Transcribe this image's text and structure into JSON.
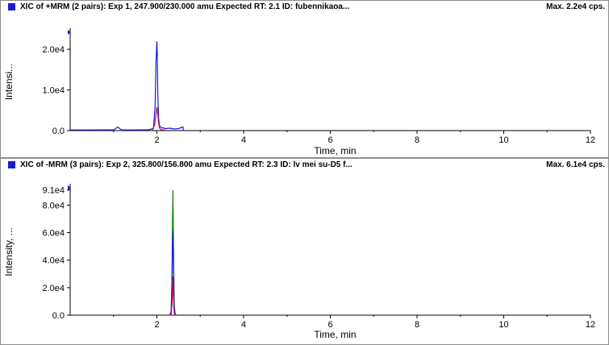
{
  "panes": [
    {
      "title": "XIC of +MRM (2 pairs): Exp 1, 247.900/230.000 amu Expected RT: 2.1 ID: fubennikaoa...",
      "max_label": "Max. 2.2e4 cps.",
      "marker_color": "#1a1ad9",
      "x_axis_label": "Time, min",
      "y_axis_label": "Intensi...",
      "chart_data": {
        "type": "line",
        "xlabel": "Time, min",
        "ylabel": "Intensi...",
        "xlim": [
          0,
          12
        ],
        "ylim": [
          0,
          24000
        ],
        "x_ticks": [
          "2",
          "4",
          "6",
          "8",
          "10",
          "12"
        ],
        "y_ticks": [
          {
            "value": 0,
            "label": "0.0"
          },
          {
            "value": 10000,
            "label": "1.0e4"
          },
          {
            "value": 20000,
            "label": "2.0e4"
          }
        ],
        "series": [
          {
            "color": "#1a1ad9",
            "x": [
              0.0,
              0.5,
              1.0,
              1.05,
              1.1,
              1.15,
              1.2,
              1.4,
              1.8,
              1.92,
              1.96,
              1.98,
              2.0,
              2.01,
              2.02,
              2.04,
              2.06,
              2.08,
              2.12,
              2.2,
              2.3,
              2.4,
              2.5,
              2.6,
              2.61
            ],
            "y": [
              150,
              150,
              200,
              500,
              900,
              400,
              150,
              150,
              200,
              500,
              6000,
              17000,
              22000,
              19000,
              9000,
              3000,
              1200,
              900,
              700,
              500,
              600,
              400,
              500,
              900,
              0
            ]
          },
          {
            "color": "#c0104a",
            "x": [
              1.9,
              1.95,
              1.98,
              2.0,
              2.02,
              2.04,
              2.06,
              2.1,
              2.2
            ],
            "y": [
              100,
              1500,
              4000,
              5800,
              4000,
              1800,
              600,
              200,
              100
            ]
          }
        ]
      }
    },
    {
      "title": "XIC of -MRM (3 pairs): Exp 2, 325.800/156.800 amu Expected RT: 2.3 ID: lv mei su-D5 f...",
      "max_label": "Max. 6.1e4 cps.",
      "marker_color": "#1a1ad9",
      "x_axis_label": "Time, min",
      "y_axis_label": "Intensity, ...",
      "chart_data": {
        "type": "line",
        "xlabel": "Time, min",
        "ylabel": "Intensity, ...",
        "xlim": [
          0,
          12
        ],
        "ylim": [
          0,
          92000
        ],
        "x_ticks": [
          "2",
          "4",
          "6",
          "8",
          "10",
          "12"
        ],
        "y_ticks": [
          {
            "value": 0,
            "label": "0.0"
          },
          {
            "value": 20000,
            "label": "2.0e4"
          },
          {
            "value": 40000,
            "label": "4.0e4"
          },
          {
            "value": 60000,
            "label": "6.0e4"
          },
          {
            "value": 80000,
            "label": "8.0e4"
          },
          {
            "value": 91000,
            "label": "9.1e4"
          }
        ],
        "series": [
          {
            "color": "#138a13",
            "x": [
              2.3,
              2.33,
              2.35,
              2.36,
              2.37,
              2.38,
              2.39,
              2.4,
              2.42,
              2.45
            ],
            "y": [
              0,
              3000,
              30000,
              70000,
              91000,
              60000,
              30000,
              8000,
              1000,
              0
            ]
          },
          {
            "color": "#1a1ad9",
            "x": [
              2.3,
              2.33,
              2.35,
              2.36,
              2.37,
              2.38,
              2.39,
              2.4,
              2.42,
              2.45
            ],
            "y": [
              0,
              2500,
              25000,
              50000,
              61000,
              45000,
              22000,
              6000,
              800,
              0
            ]
          },
          {
            "color": "#c0104a",
            "x": [
              2.3,
              2.33,
              2.35,
              2.36,
              2.37,
              2.38,
              2.39,
              2.4,
              2.42,
              2.45
            ],
            "y": [
              0,
              800,
              8000,
              18000,
              28000,
              16000,
              6000,
              1500,
              200,
              0
            ]
          }
        ]
      }
    }
  ]
}
